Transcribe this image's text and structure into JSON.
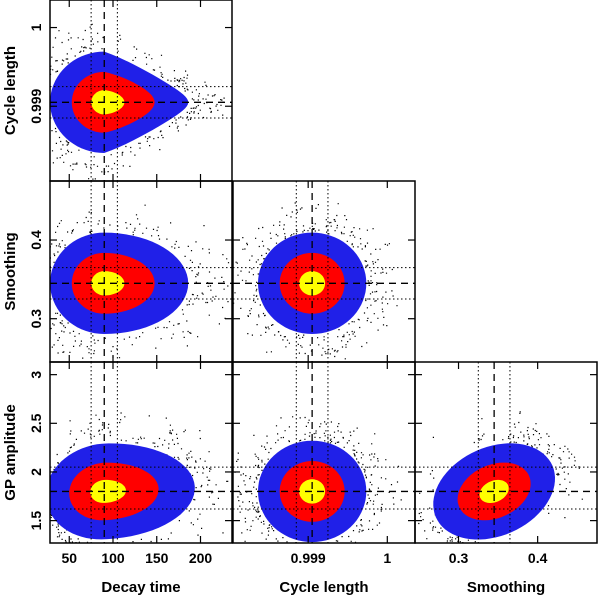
{
  "chart_data": {
    "type": "scatter",
    "variables": [
      {
        "key": "decay",
        "label": "Decay time",
        "ticks": [
          50,
          100,
          150,
          200
        ],
        "range": [
          28,
          236
        ],
        "center": 90,
        "inner_dotted": [
          75,
          105
        ]
      },
      {
        "key": "cycle",
        "label": "Cycle length",
        "ticks": [
          0.999,
          1
        ],
        "range": [
          0.99805,
          1.00035
        ],
        "center": 0.99905,
        "inner_dotted": [
          0.99885,
          0.99925
        ]
      },
      {
        "key": "smooth",
        "label": "Smoothing",
        "ticks": [
          0.3,
          0.4
        ],
        "range": [
          0.245,
          0.475
        ],
        "center": 0.345,
        "inner_dotted": [
          0.325,
          0.365
        ]
      },
      {
        "key": "gp",
        "label": "GP amplitude",
        "ticks": [
          1.5,
          2,
          2.5,
          3
        ],
        "range": [
          1.27,
          3.13
        ],
        "center": 1.8,
        "inner_dotted": [
          1.62,
          2.05
        ]
      }
    ],
    "panels": [
      {
        "x": "decay",
        "y": "cycle",
        "row": 0,
        "col": 0,
        "correlation": 0.0
      },
      {
        "x": "decay",
        "y": "smooth",
        "row": 1,
        "col": 0,
        "correlation": 0.0
      },
      {
        "x": "cycle",
        "y": "smooth",
        "row": 1,
        "col": 1,
        "correlation": 0.0
      },
      {
        "x": "decay",
        "y": "gp",
        "row": 2,
        "col": 0,
        "correlation": 0.25
      },
      {
        "x": "cycle",
        "y": "gp",
        "row": 2,
        "col": 1,
        "correlation": 0.0
      },
      {
        "x": "smooth",
        "y": "gp",
        "row": 2,
        "col": 2,
        "correlation": 0.55
      }
    ],
    "density_levels": [
      {
        "name": "outer",
        "color": "#000000"
      },
      {
        "name": "95%",
        "color": "#2020e8"
      },
      {
        "name": "68%",
        "color": "#ff0000"
      },
      {
        "name": "core",
        "color": "#ffff00"
      }
    ],
    "grid": false,
    "legend": "none"
  }
}
